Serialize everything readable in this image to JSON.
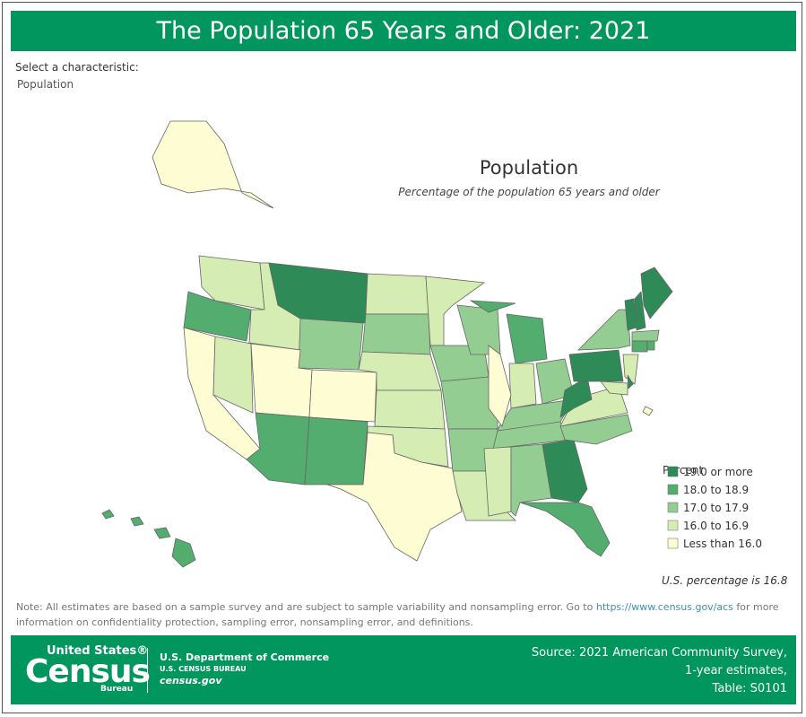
{
  "header": {
    "title": "The Population 65 Years and Older: 2021"
  },
  "selector": {
    "label": "Select a characteristic:",
    "value": "Population"
  },
  "map": {
    "title": "Population",
    "subtitle": "Percentage of the population 65 years and older",
    "legend": {
      "title": "Percent",
      "items": [
        {
          "label": "19.0 or more",
          "color": "#2e8b57"
        },
        {
          "label": "18.0 to 18.9",
          "color": "#52ad6f"
        },
        {
          "label": "17.0 to 17.9",
          "color": "#94cd92"
        },
        {
          "label": "16.0 to 16.9",
          "color": "#d5edb3"
        },
        {
          "label": "Less than 16.0",
          "color": "#fdfcd3"
        }
      ]
    },
    "regions": [
      3,
      1,
      4,
      3,
      3,
      0,
      2,
      4,
      4,
      1,
      1,
      3,
      2,
      3,
      3,
      3,
      4,
      3,
      2,
      2,
      2,
      3,
      2,
      1,
      1,
      3,
      2,
      2,
      2,
      3,
      2,
      4,
      0,
      1,
      2,
      3,
      0,
      0,
      2,
      0,
      0,
      0,
      2,
      1,
      1,
      3,
      3,
      0,
      4,
      4,
      1,
      1,
      1,
      1
    ],
    "us_note": "U.S. percentage is 16.8"
  },
  "note": {
    "text_before": "Note: All estimates are based on a sample survey and are subject to sample variability and nonsampling error. Go to ",
    "link": "https://www.census.gov/acs",
    "text_after": " for more information on confidentiality protection, sampling error, nonsampling error, and definitions."
  },
  "footer": {
    "logo_top": "United States®",
    "logo_main": "Census",
    "logo_sub": "Bureau",
    "dept": "U.S. Department of Commerce",
    "bureau": "U.S. CENSUS BUREAU",
    "site": "census.gov",
    "source": [
      "Source: 2021 American Community Survey,",
      "1-year estimates,",
      "Table: S0101"
    ]
  }
}
